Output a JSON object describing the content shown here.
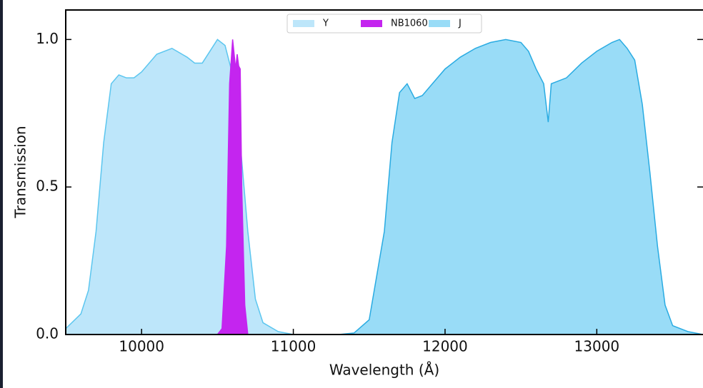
{
  "chart_data": {
    "type": "area",
    "x_label": "Wavelength (Å)",
    "y_label": "Transmission",
    "xlim": [
      9500,
      13700
    ],
    "ylim": [
      0,
      1.1
    ],
    "xticks": [
      10000,
      11000,
      12000,
      13000
    ],
    "yticks": [
      {
        "value": 0,
        "label": "0.0"
      },
      0.5,
      {
        "value": 1,
        "label": "1.0"
      }
    ],
    "legend": "upper center",
    "series": [
      {
        "name": "Y",
        "color": "#bde6fa",
        "edge_color": "#5cc6ef",
        "x": [
          9500,
          9600,
          9650,
          9700,
          9750,
          9800,
          9850,
          9900,
          9950,
          10000,
          10100,
          10200,
          10300,
          10350,
          10400,
          10450,
          10500,
          10550,
          10600,
          10650,
          10700,
          10750,
          10800,
          10900,
          11000
        ],
        "values": [
          0.02,
          0.07,
          0.15,
          0.35,
          0.65,
          0.85,
          0.88,
          0.87,
          0.87,
          0.89,
          0.95,
          0.97,
          0.94,
          0.92,
          0.92,
          0.96,
          1.0,
          0.98,
          0.88,
          0.65,
          0.35,
          0.12,
          0.04,
          0.01,
          0
        ]
      },
      {
        "name": "NB1060",
        "color": "#c425ef",
        "edge_color": "#c425ef",
        "x": [
          10500,
          10530,
          10560,
          10580,
          10600,
          10620,
          10630,
          10640,
          10650,
          10660,
          10680,
          10700
        ],
        "values": [
          0,
          0.02,
          0.3,
          0.85,
          1.0,
          0.9,
          0.95,
          0.91,
          0.9,
          0.5,
          0.1,
          0
        ]
      },
      {
        "name": "J",
        "color": "#99dcf7",
        "edge_color": "#29abe2",
        "x": [
          11300,
          11400,
          11500,
          11600,
          11650,
          11700,
          11750,
          11800,
          11850,
          11900,
          12000,
          12100,
          12200,
          12300,
          12400,
          12500,
          12550,
          12600,
          12650,
          12680,
          12700,
          12800,
          12900,
          13000,
          13100,
          13150,
          13200,
          13250,
          13300,
          13350,
          13400,
          13450,
          13500,
          13600,
          13700
        ],
        "values": [
          0,
          0.005,
          0.05,
          0.35,
          0.65,
          0.82,
          0.85,
          0.8,
          0.81,
          0.84,
          0.9,
          0.94,
          0.97,
          0.99,
          1.0,
          0.99,
          0.96,
          0.9,
          0.85,
          0.72,
          0.85,
          0.87,
          0.92,
          0.96,
          0.99,
          1.0,
          0.97,
          0.93,
          0.78,
          0.55,
          0.3,
          0.1,
          0.03,
          0.01,
          0
        ]
      }
    ]
  }
}
